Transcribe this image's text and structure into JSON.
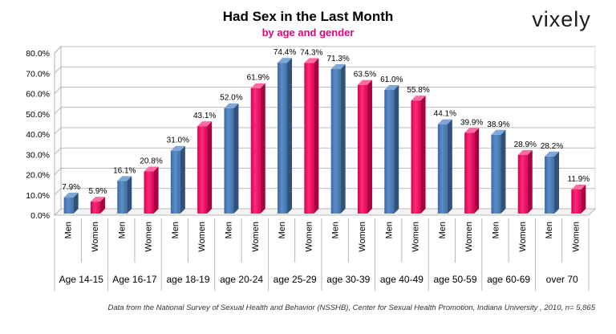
{
  "brand": {
    "logo_text": "vixely"
  },
  "chart_data": {
    "type": "bar",
    "title": "Had Sex in the Last Month",
    "subtitle": "by age and gender",
    "groups": [
      "Age 14-15",
      "Age 16-17",
      "age 18-19",
      "age 20-24",
      "age 25-29",
      "age 30-39",
      "age 40-49",
      "age 50-59",
      "age 60-69",
      "over 70"
    ],
    "genders": [
      "Men",
      "Women"
    ],
    "values": [
      [
        7.9,
        5.9
      ],
      [
        16.1,
        20.8
      ],
      [
        31.0,
        43.1
      ],
      [
        52.0,
        61.9
      ],
      [
        74.4,
        74.3
      ],
      [
        71.3,
        63.5
      ],
      [
        61.0,
        55.8
      ],
      [
        44.1,
        39.9
      ],
      [
        38.9,
        28.9
      ],
      [
        28.2,
        11.9
      ]
    ],
    "value_labels": [
      [
        "7.9%",
        "5.9%"
      ],
      [
        "16.1%",
        "20.8%"
      ],
      [
        "31.0%",
        "43.1%"
      ],
      [
        "52.0%",
        "61.9%"
      ],
      [
        "74.4%",
        "74.3%"
      ],
      [
        "71.3%",
        "63.5%"
      ],
      [
        "61.0%",
        "55.8%"
      ],
      [
        "44.1%",
        "39.9%"
      ],
      [
        "38.9%",
        "28.9%"
      ],
      [
        "28.2%",
        "11.9%"
      ]
    ],
    "yticks": [
      "0.0%",
      "10.0%",
      "20.0%",
      "30.0%",
      "40.0%",
      "50.0%",
      "60.0%",
      "70.0%",
      "80.0%"
    ],
    "ylim": [
      0,
      80
    ],
    "grid": true,
    "colors": {
      "Men": "#4f81bd",
      "Women": "#ff0066",
      "subtitle": "#e6007e",
      "grid": "#a6a6a6"
    },
    "source": "Data from the National Survey of Sexual Health and Behavior (NSSHB), Center for Sexual Health Promotion, Indiana University , 2010, n= 5,865"
  }
}
